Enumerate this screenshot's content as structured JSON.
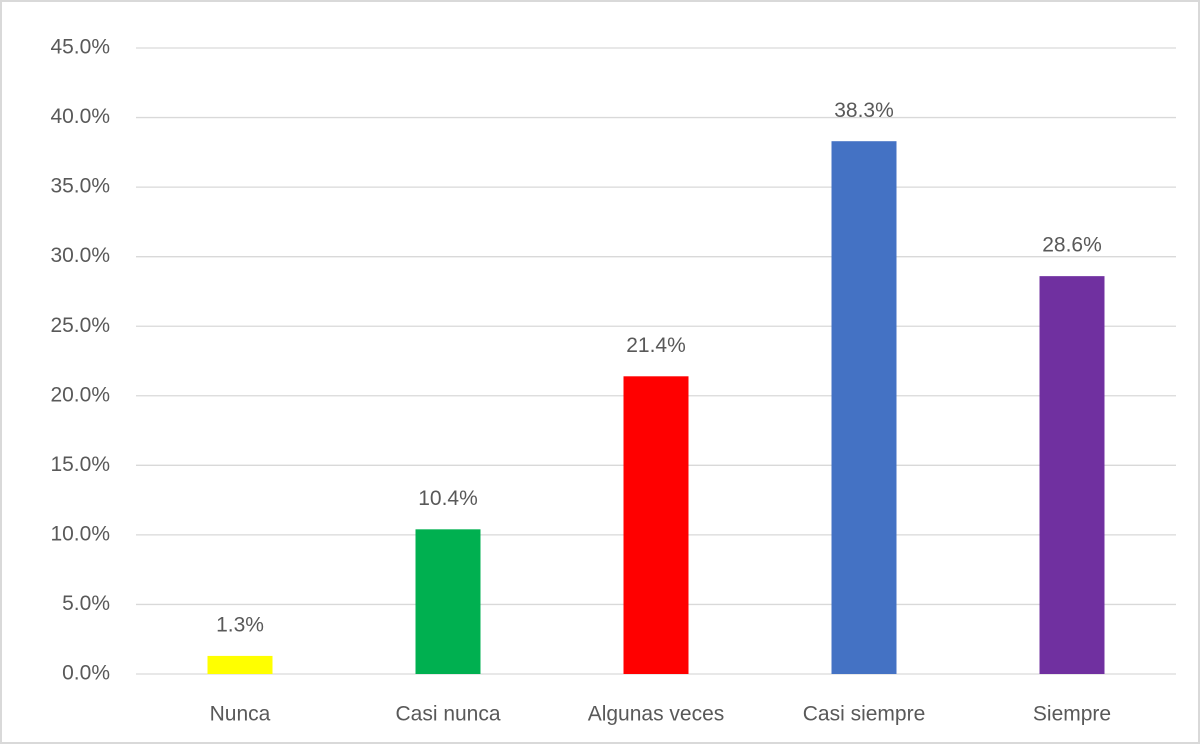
{
  "chart_data": {
    "type": "bar",
    "categories": [
      "Nunca",
      "Casi nunca",
      "Algunas veces",
      "Casi siempre",
      "Siempre"
    ],
    "values": [
      1.3,
      10.4,
      21.4,
      38.3,
      28.6
    ],
    "value_labels": [
      "1.3%",
      "10.4%",
      "21.4%",
      "38.3%",
      "28.6%"
    ],
    "colors": [
      "#ffff00",
      "#00b050",
      "#ff0000",
      "#4472c4",
      "#7030a0"
    ],
    "ylim": [
      0,
      45
    ],
    "yticks": [
      {
        "value": 0,
        "label": "0.0%"
      },
      {
        "value": 5,
        "label": "5.0%"
      },
      {
        "value": 10,
        "label": "10.0%"
      },
      {
        "value": 15,
        "label": "15.0%"
      },
      {
        "value": 20,
        "label": "20.0%"
      },
      {
        "value": 25,
        "label": "25.0%"
      },
      {
        "value": 30,
        "label": "30.0%"
      },
      {
        "value": 35,
        "label": "35.0%"
      },
      {
        "value": 40,
        "label": "40.0%"
      },
      {
        "value": 45,
        "label": "45.0%"
      }
    ],
    "grid": true
  }
}
